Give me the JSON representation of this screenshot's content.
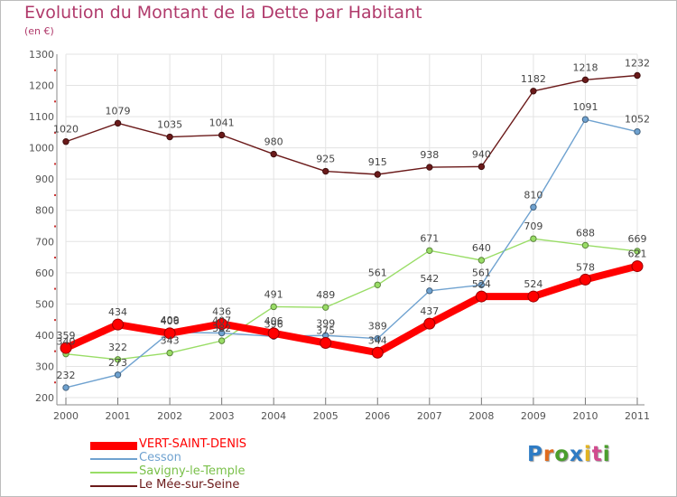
{
  "header": {
    "title": "Evolution du Montant de la Dette par Habitant",
    "subtitle": "(en €)"
  },
  "brand": {
    "logo_text": "Proxiti",
    "letter_colors": [
      "#2e7bc4",
      "#e06b1d",
      "#4a9e2c",
      "#2e7bc4",
      "#e2b320",
      "#d14b8f",
      "#4a9e2c"
    ]
  },
  "chart_data": {
    "type": "line",
    "title": "Evolution du Montant de la Dette par Habitant",
    "subtitle": "(en €)",
    "xlabel": "",
    "ylabel": "",
    "x": [
      "2000",
      "2001",
      "2002",
      "2003",
      "2004",
      "2005",
      "2006",
      "2007",
      "2008",
      "2009",
      "2010",
      "2011"
    ],
    "ylim": [
      200,
      1300
    ],
    "yticks": [
      200,
      300,
      400,
      500,
      600,
      700,
      800,
      900,
      1000,
      1100,
      1200,
      1300
    ],
    "grid": true,
    "legend_position": "bottom-left",
    "series": [
      {
        "name": "VERT-SAINT-DENIS",
        "color": "#ff0000",
        "values": [
          359,
          434,
          406,
          436,
          406,
          375,
          344,
          437,
          524,
          524,
          578,
          621
        ]
      },
      {
        "name": "Cesson",
        "color": "#6fa2d0",
        "values": [
          232,
          273,
          409,
          407,
          396,
          399,
          389,
          542,
          561,
          810,
          1091,
          1052
        ]
      },
      {
        "name": "Savigny-le-Temple",
        "color": "#99dd66",
        "values": [
          340,
          322,
          343,
          382,
          491,
          489,
          561,
          671,
          640,
          709,
          688,
          669
        ]
      },
      {
        "name": "Le Mée-sur-Seine",
        "color": "#6b1a1a",
        "values": [
          1020,
          1079,
          1035,
          1041,
          980,
          925,
          915,
          938,
          940,
          1182,
          1218,
          1232
        ]
      }
    ]
  }
}
